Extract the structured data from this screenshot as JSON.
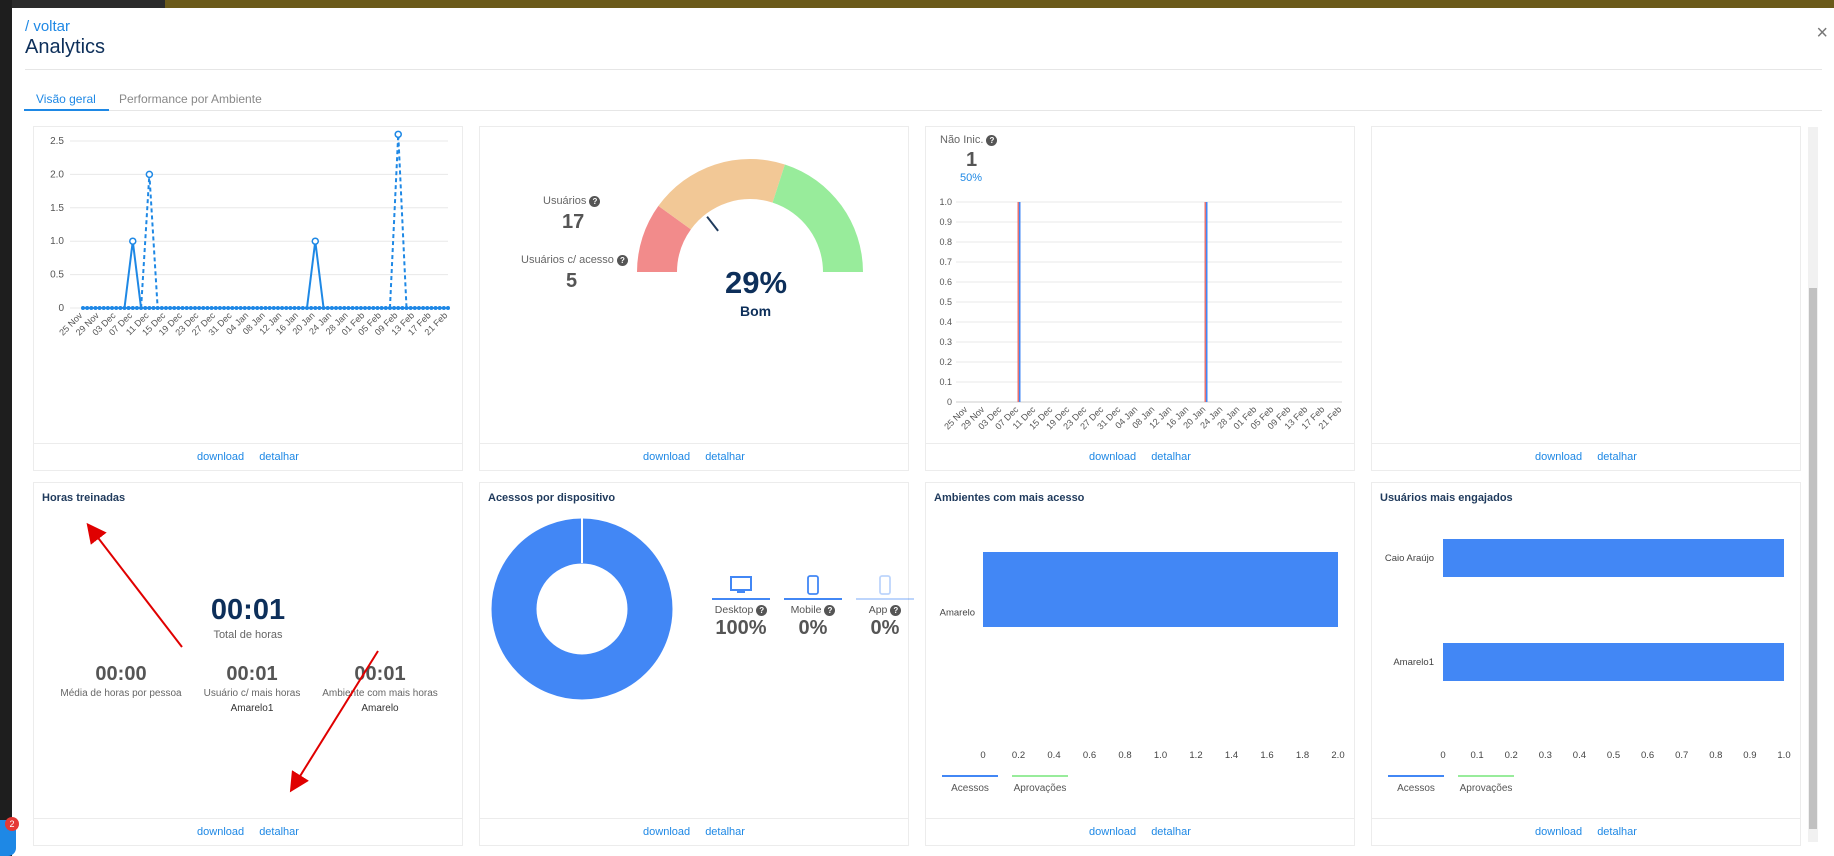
{
  "header": {
    "back": "/ voltar",
    "title": "Analytics",
    "close": "×"
  },
  "tabs": [
    "Visão geral",
    "Performance por Ambiente"
  ],
  "footer": {
    "download": "download",
    "detalhar": "detalhar"
  },
  "colors": {
    "accent": "#1e88e5",
    "navy": "#0d2f5a",
    "bar": "#4287f5",
    "gauge_red": "#f28b8b",
    "gauge_orange": "#f2c896",
    "gauge_green": "#98ec9b"
  },
  "card1": {
    "chart_data": {
      "type": "line",
      "y_ticks": [
        "2.5",
        "2.0",
        "1.5",
        "1.0",
        "0.5",
        "0"
      ],
      "x_ticks": [
        "25 Nov",
        "29 Nov",
        "03 Dec",
        "07 Dec",
        "11 Dec",
        "15 Dec",
        "19 Dec",
        "23 Dec",
        "27 Dec",
        "31 Dec",
        "04 Jan",
        "08 Jan",
        "12 Jan",
        "16 Jan",
        "20 Jan",
        "24 Jan",
        "28 Jan",
        "01 Feb",
        "05 Feb",
        "09 Feb",
        "13 Feb",
        "17 Feb",
        "21 Feb"
      ],
      "ylim": [
        0,
        2.5
      ],
      "series": [
        {
          "style": "solid",
          "points": [
            [
              "07 Dec",
              1
            ],
            [
              "20 Jan",
              1
            ]
          ]
        },
        {
          "style": "dashed",
          "points": [
            [
              "11 Dec",
              2
            ],
            [
              "09 Feb",
              2.6
            ]
          ]
        }
      ]
    }
  },
  "card2": {
    "usuarios_label": "Usuários",
    "usuarios_value": "17",
    "acesso_label": "Usuários c/ acesso",
    "acesso_value": "5",
    "gauge_percent": "29%",
    "gauge_text": "Bom",
    "gauge_level": 0.29
  },
  "card3": {
    "nao_label": "Não Inic.",
    "nao_value": "1",
    "nao_pct": "50%",
    "chart_data": {
      "type": "bar",
      "y_ticks": [
        "1.0",
        "0.9",
        "0.8",
        "0.7",
        "0.6",
        "0.5",
        "0.4",
        "0.3",
        "0.2",
        "0.1",
        "0"
      ],
      "x_ticks": [
        "25 Nov",
        "29 Nov",
        "03 Dec",
        "07 Dec",
        "11 Dec",
        "15 Dec",
        "19 Dec",
        "23 Dec",
        "27 Dec",
        "31 Dec",
        "04 Jan",
        "08 Jan",
        "12 Jan",
        "16 Jan",
        "20 Jan",
        "24 Jan",
        "28 Jan",
        "01 Feb",
        "05 Feb",
        "09 Feb",
        "13 Feb",
        "17 Feb",
        "21 Feb"
      ],
      "ylim": [
        0,
        1.0
      ],
      "bars": [
        [
          "07 Dec",
          1.0
        ],
        [
          "20 Jan",
          1.0
        ]
      ]
    }
  },
  "card5": {
    "title": "Horas treinadas",
    "total_value": "00:01",
    "total_label": "Total de horas",
    "media_value": "00:00",
    "media_label": "Média de horas por pessoa",
    "usuario_value": "00:01",
    "usuario_label": "Usuário c/ mais horas",
    "usuario_name": "Amarelo1",
    "ambiente_value": "00:01",
    "ambiente_label": "Ambiente com mais horas",
    "ambiente_name": "Amarelo"
  },
  "card6": {
    "title": "Acessos por dispositivo",
    "devices": [
      {
        "label": "Desktop",
        "value": "100%",
        "icon": "desktop-icon"
      },
      {
        "label": "Mobile",
        "value": "0%",
        "icon": "mobile-icon"
      },
      {
        "label": "App",
        "value": "0%",
        "icon": "app-icon"
      }
    ],
    "chart_data": {
      "type": "pie",
      "slices": [
        {
          "label": "Desktop",
          "value": 100
        },
        {
          "label": "Mobile",
          "value": 0
        },
        {
          "label": "App",
          "value": 0
        }
      ]
    }
  },
  "card7": {
    "title": "Ambientes com mais acesso",
    "legend": [
      "Acessos",
      "Aprovações"
    ],
    "chart_data": {
      "type": "bar",
      "orientation": "horizontal",
      "categories": [
        "Amarelo"
      ],
      "series": [
        {
          "name": "Acessos",
          "values": [
            2
          ]
        },
        {
          "name": "Aprovações",
          "values": [
            0
          ]
        }
      ],
      "x_ticks": [
        "0",
        "0.2",
        "0.4",
        "0.6",
        "0.8",
        "1.0",
        "1.2",
        "1.4",
        "1.6",
        "1.8",
        "2.0"
      ],
      "xlim": [
        0,
        2.0
      ]
    }
  },
  "card8": {
    "title": "Usuários mais engajados",
    "legend": [
      "Acessos",
      "Aprovações"
    ],
    "chart_data": {
      "type": "bar",
      "orientation": "horizontal",
      "categories": [
        "Caio Araújo",
        "Amarelo1"
      ],
      "series": [
        {
          "name": "Acessos",
          "values": [
            1,
            1
          ]
        },
        {
          "name": "Aprovações",
          "values": [
            0,
            0
          ]
        }
      ],
      "x_ticks": [
        "0",
        "0.1",
        "0.2",
        "0.3",
        "0.4",
        "0.5",
        "0.6",
        "0.7",
        "0.8",
        "0.9",
        "1.0"
      ],
      "xlim": [
        0,
        1.0
      ]
    }
  }
}
